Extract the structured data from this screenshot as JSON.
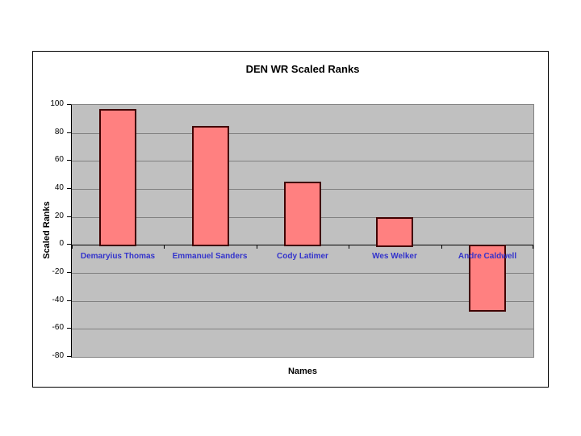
{
  "chart_data": {
    "type": "bar",
    "title": "DEN WR Scaled Ranks",
    "xlabel": "Names",
    "ylabel": "Scaled Ranks",
    "categories": [
      "Demaryius Thomas",
      "Emmanuel Sanders",
      "Cody Latimer",
      "Wes Welker",
      "Andre Caldwell"
    ],
    "values": [
      97,
      85,
      45,
      20,
      -47
    ],
    "ylim": [
      -80,
      100
    ],
    "yticks": [
      100,
      80,
      60,
      40,
      20,
      0,
      -20,
      -40,
      -60,
      -80
    ],
    "grid": true,
    "legend": false,
    "colors": {
      "bar_fill": "#FF8080",
      "bar_border": "#400000",
      "plot_background": "#C0C0C0",
      "gridline": "#808080",
      "zero_axis": "#000000",
      "category_label": "#3333CC",
      "text": "#000000",
      "page_background": "#FFFFFF",
      "frame_border": "#000000"
    }
  }
}
